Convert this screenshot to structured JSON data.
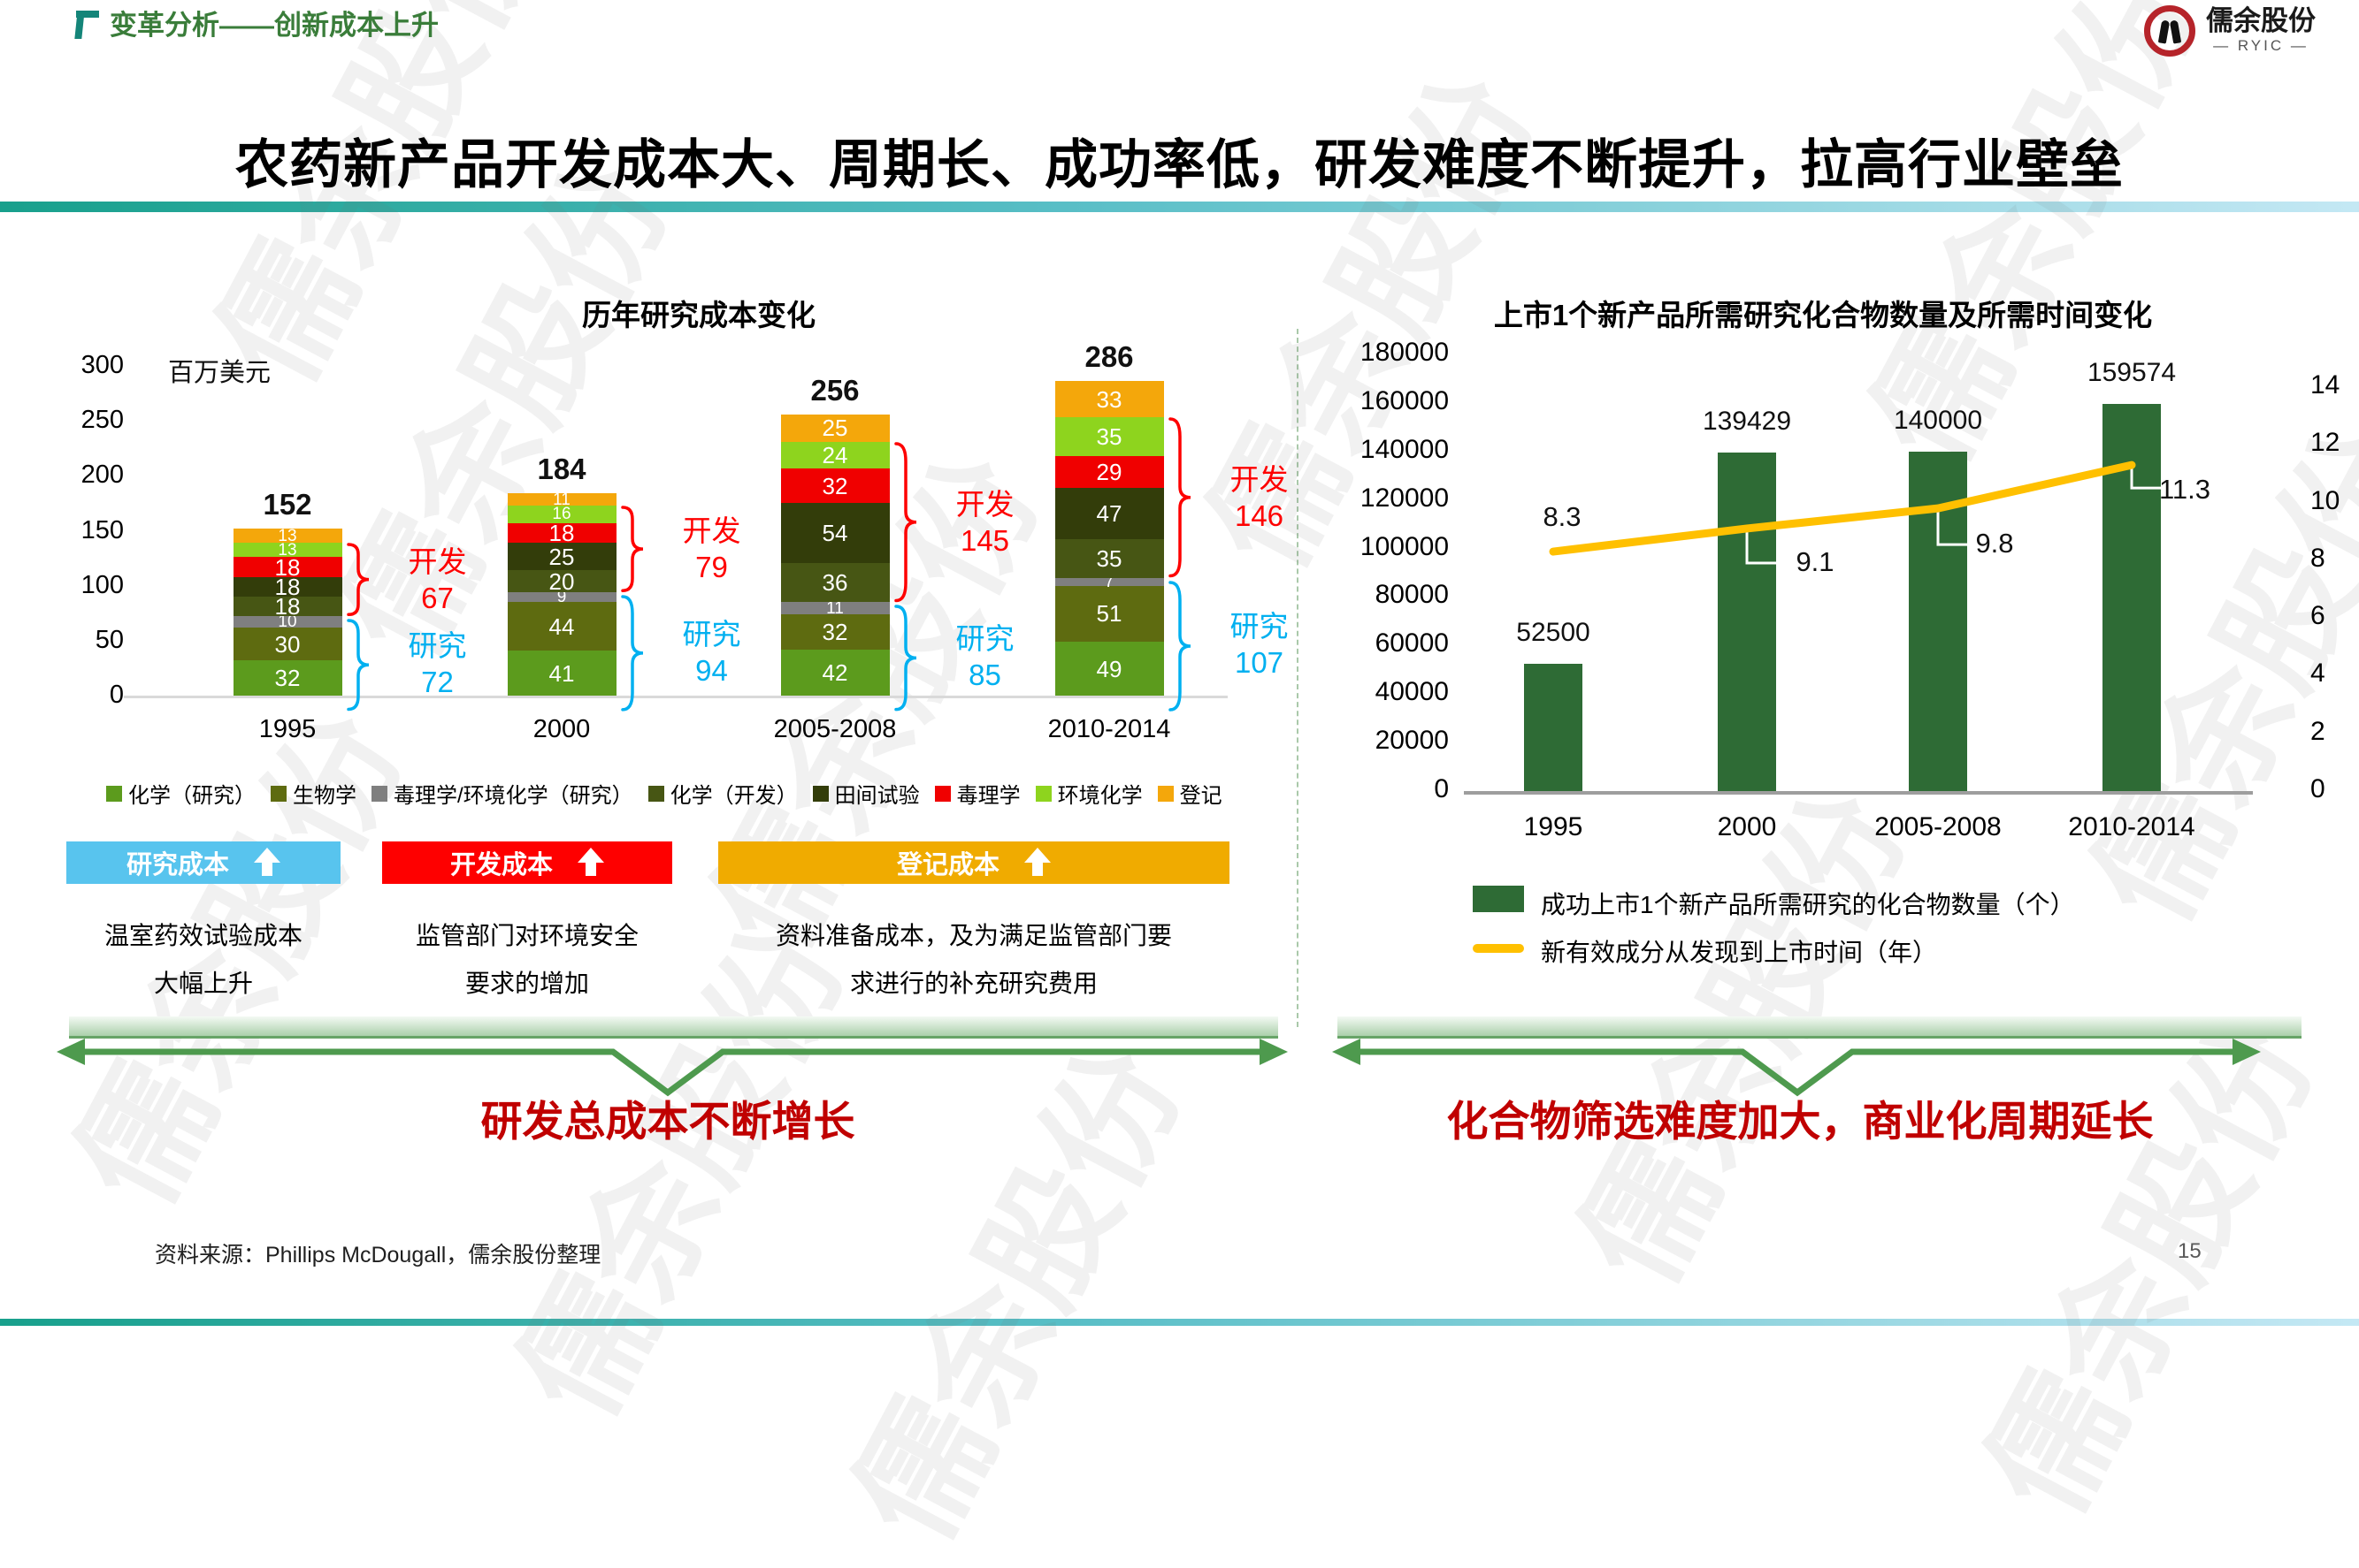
{
  "header": {
    "breadcrumb": "变革分析——创新成本上升"
  },
  "logo": {
    "name": "儒余股份",
    "sub": "— RYIC —"
  },
  "title": "农药新产品开发成本大、周期长、成功率低，研发难度不断提升，拉高行业壁垒",
  "watermark": "儒余股份",
  "chart_data": [
    {
      "type": "bar",
      "subtype": "stacked",
      "title": "历年研究成本变化",
      "unit_label": "百万美元",
      "categories": [
        "1995",
        "2000",
        "2005-2008",
        "2010-2014"
      ],
      "totals": [
        152,
        184,
        256,
        286
      ],
      "yticks": [
        300,
        250,
        200,
        150,
        100,
        50,
        0
      ],
      "ylim": [
        0,
        300
      ],
      "series": [
        {
          "name": "化学（研究）",
          "color": "#5c9b1d",
          "values": [
            32,
            41,
            42,
            49
          ]
        },
        {
          "name": "生物学",
          "color": "#5e6b10",
          "values": [
            30,
            44,
            32,
            51
          ]
        },
        {
          "name": "毒理学/环境化学（研究）",
          "color": "#7f7f7f",
          "values": [
            10,
            9,
            11,
            7
          ]
        },
        {
          "name": "化学（开发）",
          "color": "#475614",
          "values": [
            18,
            20,
            36,
            35
          ]
        },
        {
          "name": "田间试验",
          "color": "#333d0a",
          "values": [
            18,
            25,
            54,
            47
          ]
        },
        {
          "name": "毒理学",
          "color": "#f00000",
          "values": [
            18,
            18,
            32,
            29
          ]
        },
        {
          "name": "环境化学",
          "color": "#8ed41e",
          "values": [
            13,
            16,
            24,
            35
          ]
        },
        {
          "name": "登记",
          "color": "#f4a70b",
          "values": [
            13,
            11,
            25,
            33
          ]
        }
      ],
      "annotations": {
        "dev_label": "开发",
        "res_label": "研究",
        "dev_color": "#fe0000",
        "res_color": "#00b0f0",
        "items": [
          {
            "dev": 67,
            "res": 72
          },
          {
            "dev": 79,
            "res": 94
          },
          {
            "dev": 145,
            "res": 85
          },
          {
            "dev": 146,
            "res": 107
          }
        ]
      }
    },
    {
      "type": "bar",
      "subtype": "bar+line",
      "title": "上市1个新产品所需研究化合物数量及所需时间变化",
      "categories": [
        "1995",
        "2000",
        "2005-2008",
        "2010-2014"
      ],
      "bar_series": {
        "name": "成功上市1个新产品所需研究的化合物数量（个）",
        "color": "#2e6b35",
        "values": [
          52500,
          139429,
          140000,
          159574
        ]
      },
      "line_series": {
        "name": "新有效成分从发现到上市时间（年）",
        "color": "#ffc000",
        "values": [
          8.3,
          9.1,
          9.8,
          11.3
        ]
      },
      "left_yticks": [
        180000,
        160000,
        140000,
        120000,
        100000,
        80000,
        60000,
        40000,
        20000,
        0
      ],
      "right_yticks": [
        14,
        12,
        10,
        8,
        6,
        4,
        2,
        0
      ],
      "left_ylim": [
        0,
        180000
      ],
      "right_ylim": [
        0,
        14
      ]
    }
  ],
  "left_panel": {
    "banners": [
      {
        "label": "研究成本",
        "color": "#58c4ee",
        "desc1": "温室药效试验成本",
        "desc2": "大幅上升"
      },
      {
        "label": "开发成本",
        "color": "#fe0000",
        "desc1": "监管部门对环境安全",
        "desc2": "要求的增加"
      },
      {
        "label": "登记成本",
        "color": "#f0ab00",
        "desc1": "资料准备成本，及为满足监管部门要",
        "desc2": "求进行的补充研究费用"
      }
    ],
    "conclusion": "研发总成本不断增长"
  },
  "right_panel": {
    "conclusion": "化合物筛选难度加大，商业化周期延长"
  },
  "footer": {
    "source": "资料来源：Phillips McDougall，儒余股份整理",
    "page": "15"
  }
}
